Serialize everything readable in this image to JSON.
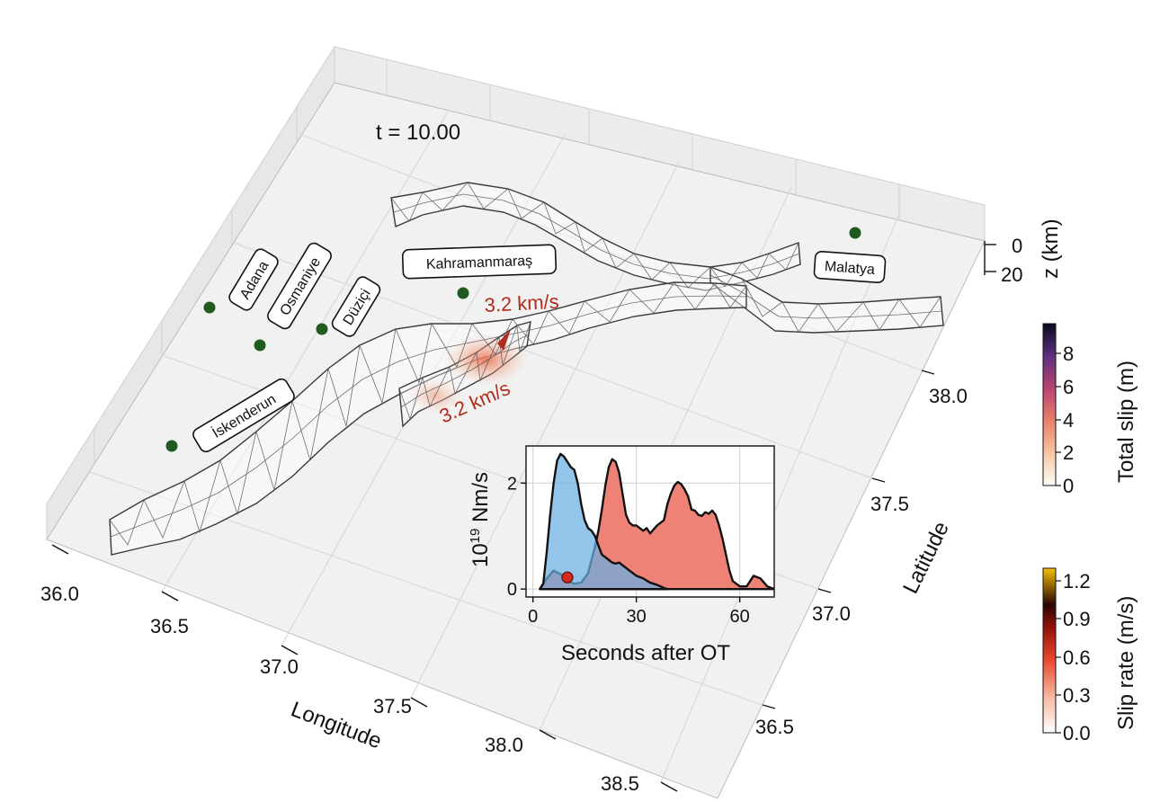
{
  "time_label": "t = 10.00",
  "axes": {
    "x_label": "Longitude",
    "y_label": "Latitude",
    "z_label": "z (km)",
    "x_ticks": [
      "36.0",
      "36.5",
      "37.0",
      "37.5",
      "38.0",
      "38.5"
    ],
    "y_ticks": [
      "36.5",
      "37.0",
      "37.5",
      "38.0"
    ],
    "z_ticks": [
      "0",
      "20"
    ]
  },
  "cities": [
    {
      "name": "Adana"
    },
    {
      "name": "Osmaniye"
    },
    {
      "name": "Düziçi"
    },
    {
      "name": "Kahramanmaraş"
    },
    {
      "name": "Malatya"
    },
    {
      "name": "İskenderun"
    }
  ],
  "rupture_speeds": [
    "3.2 km/s",
    "3.2 km/s"
  ],
  "colorbars": {
    "total_slip": {
      "label": "Total slip (m)",
      "ticks": [
        "0",
        "2",
        "4",
        "6",
        "8"
      ],
      "range": [
        0,
        9.8
      ]
    },
    "slip_rate": {
      "label": "Slip rate (m/s)",
      "ticks": [
        "0.0",
        "0.3",
        "0.6",
        "0.9",
        "1.2"
      ],
      "range": [
        0,
        1.3
      ]
    }
  },
  "colors": {
    "station": "#1f5a1f",
    "speed_text": "#b32b1c",
    "blue_fill": "#6aaee3",
    "red_fill": "#ee8276",
    "overlap_fill": "#5f5c9c",
    "mesh": "#555555"
  },
  "chart_data": {
    "type": "area",
    "xlabel": "Seconds after OT",
    "ylabel": "10^19 Nm/s",
    "xlim": [
      -2,
      70
    ],
    "ylim": [
      -0.15,
      2.7
    ],
    "xticks": [
      0,
      30,
      60
    ],
    "yticks": [
      0,
      2
    ],
    "grid": true,
    "marker": {
      "x": 10,
      "y": 0.22
    },
    "series": [
      {
        "fill": "#6aaee3",
        "x": [
          2,
          3,
          4,
          5,
          6,
          7,
          8,
          9,
          10,
          11,
          12,
          13,
          14,
          15,
          16,
          17,
          18,
          19,
          20,
          21,
          22,
          23,
          24,
          25,
          26,
          28,
          30,
          32,
          34,
          36,
          38,
          39
        ],
        "y": [
          0,
          0.1,
          0.7,
          1.4,
          2.0,
          2.42,
          2.55,
          2.5,
          2.4,
          2.3,
          2.25,
          2.0,
          1.6,
          1.3,
          1.15,
          1.1,
          1.0,
          0.82,
          0.65,
          0.6,
          0.55,
          0.5,
          0.48,
          0.5,
          0.45,
          0.35,
          0.25,
          0.2,
          0.12,
          0.08,
          0.02,
          0
        ]
      },
      {
        "fill": "#ee8276",
        "x": [
          2,
          4,
          6,
          8,
          10,
          12,
          14,
          16,
          18,
          19,
          20,
          21,
          22,
          23,
          24,
          25,
          26,
          27,
          28,
          29,
          30,
          32,
          33,
          34,
          36,
          38,
          39,
          40,
          41,
          42,
          43,
          44,
          45,
          46,
          47,
          48,
          49,
          50,
          51,
          52,
          53,
          54,
          55,
          56,
          57,
          58,
          60,
          62,
          64,
          66,
          68,
          70
        ],
        "y": [
          0,
          0.2,
          0.35,
          0.28,
          0.15,
          0.1,
          0.12,
          0.3,
          0.8,
          1.1,
          1.5,
          1.95,
          2.3,
          2.45,
          2.4,
          2.2,
          1.8,
          1.4,
          1.25,
          1.2,
          1.2,
          1.1,
          1.15,
          1.05,
          1.2,
          1.3,
          1.6,
          1.8,
          1.95,
          2.02,
          1.98,
          1.88,
          1.75,
          1.5,
          1.48,
          1.4,
          1.38,
          1.45,
          1.42,
          1.48,
          1.4,
          1.2,
          0.95,
          0.65,
          0.35,
          0.15,
          0.05,
          0.05,
          0.25,
          0.2,
          0.05,
          0
        ]
      }
    ]
  }
}
